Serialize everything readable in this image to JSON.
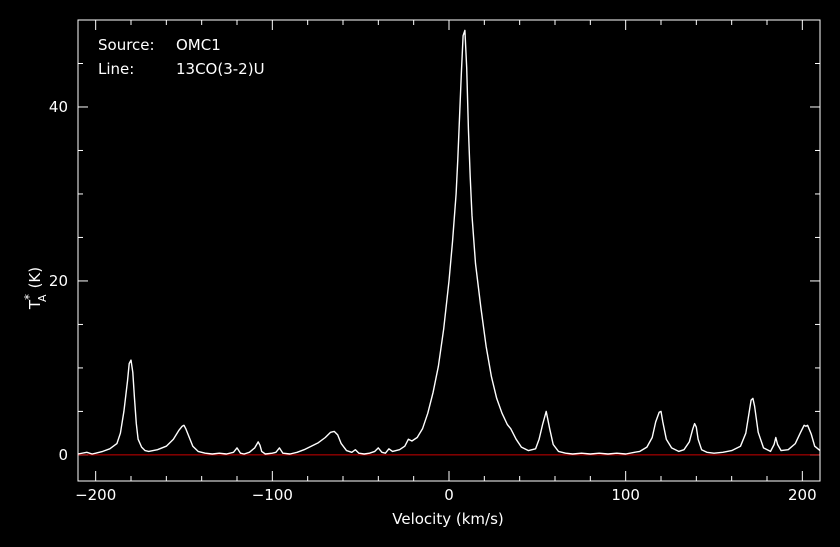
{
  "chart_data": {
    "type": "line",
    "annotations": [
      {
        "key": "Source:",
        "value": "OMC1"
      },
      {
        "key": "Line:",
        "value": "13CO(3-2)U"
      }
    ],
    "xlabel": "Velocity (km/s)",
    "ylabel": {
      "text": "T",
      "sub": "A",
      "sup": "*",
      "unit": "(K)"
    },
    "xlim": [
      -210,
      210
    ],
    "ylim": [
      -3,
      50
    ],
    "xticks": [
      -200,
      -100,
      0,
      100,
      200
    ],
    "xtick_labels": [
      "−200",
      "−100",
      "0",
      "100",
      "200"
    ],
    "yticks": [
      0,
      20,
      40
    ],
    "ytick_labels": [
      "0",
      "20",
      "40"
    ],
    "baseline": 0,
    "colors": {
      "background": "#000000",
      "spectrum": "#ffffff",
      "baseline": "#cc0000",
      "axes": "#ffffff"
    },
    "series": [
      {
        "x": [
          -210,
          -205,
          -202,
          -200,
          -196,
          -192,
          -188,
          -186,
          -184,
          -182,
          -181,
          -180,
          -179,
          -178,
          -177,
          -176,
          -174,
          -172,
          -170,
          -165,
          -160,
          -156,
          -153,
          -151,
          -150,
          -149,
          -147,
          -145,
          -142,
          -138,
          -134,
          -130,
          -126,
          -122,
          -120,
          -118,
          -116,
          -113,
          -110,
          -108,
          -107,
          -106,
          -104,
          -100,
          -98,
          -96,
          -94,
          -90,
          -86,
          -82,
          -78,
          -74,
          -70,
          -67,
          -65,
          -63,
          -61,
          -58,
          -55,
          -53,
          -51,
          -48,
          -45,
          -42,
          -40,
          -38,
          -36,
          -34,
          -32,
          -28,
          -25,
          -23,
          -21,
          -18,
          -15,
          -12,
          -9,
          -6,
          -3,
          0,
          2,
          4,
          5,
          6,
          7,
          8,
          9,
          10,
          11,
          12,
          13,
          15,
          18,
          21,
          24,
          27,
          30,
          33,
          35,
          38,
          41,
          45,
          49,
          51,
          53,
          55,
          57,
          59,
          62,
          66,
          70,
          75,
          80,
          85,
          90,
          95,
          100,
          105,
          108,
          112,
          115,
          117,
          119,
          120,
          121,
          123,
          126,
          130,
          133,
          136,
          138,
          139,
          140,
          141,
          143,
          146,
          150,
          155,
          160,
          165,
          168,
          170,
          171,
          172,
          173,
          175,
          178,
          182,
          184,
          185,
          186,
          188,
          192,
          196,
          199,
          201,
          202,
          203,
          205,
          207,
          210
        ],
        "y": [
          0.1,
          0.3,
          0.1,
          0.2,
          0.4,
          0.7,
          1.3,
          2.5,
          5.0,
          8.5,
          10.5,
          10.9,
          9.5,
          6.5,
          3.6,
          1.8,
          0.9,
          0.5,
          0.4,
          0.6,
          1.0,
          1.8,
          2.8,
          3.3,
          3.4,
          3.0,
          2.0,
          1.0,
          0.4,
          0.2,
          0.1,
          0.2,
          0.1,
          0.3,
          0.8,
          0.2,
          0.1,
          0.3,
          0.8,
          1.5,
          1.1,
          0.4,
          0.1,
          0.2,
          0.3,
          0.8,
          0.2,
          0.1,
          0.3,
          0.6,
          1.0,
          1.4,
          2.0,
          2.6,
          2.7,
          2.3,
          1.3,
          0.5,
          0.3,
          0.6,
          0.2,
          0.1,
          0.2,
          0.4,
          0.8,
          0.3,
          0.2,
          0.7,
          0.4,
          0.6,
          1.0,
          1.8,
          1.6,
          2.0,
          3.0,
          4.8,
          7.2,
          10.2,
          14.5,
          20.0,
          24.5,
          30.0,
          34.0,
          39.0,
          44.0,
          48.2,
          48.8,
          44.5,
          37.5,
          32.0,
          27.5,
          22.0,
          17.0,
          12.5,
          9.0,
          6.5,
          4.8,
          3.5,
          3.0,
          1.8,
          0.9,
          0.5,
          0.7,
          1.8,
          3.5,
          5.0,
          3.0,
          1.2,
          0.4,
          0.2,
          0.1,
          0.2,
          0.1,
          0.2,
          0.1,
          0.2,
          0.1,
          0.3,
          0.4,
          0.9,
          2.0,
          3.8,
          4.9,
          5.0,
          3.8,
          1.8,
          0.8,
          0.4,
          0.6,
          1.5,
          3.0,
          3.6,
          3.2,
          1.8,
          0.6,
          0.3,
          0.2,
          0.3,
          0.5,
          1.0,
          2.5,
          5.0,
          6.3,
          6.5,
          5.6,
          2.6,
          0.8,
          0.4,
          1.2,
          2.0,
          1.2,
          0.5,
          0.6,
          1.3,
          2.6,
          3.4,
          3.3,
          3.4,
          2.4,
          1.0,
          0.5
        ]
      }
    ]
  }
}
